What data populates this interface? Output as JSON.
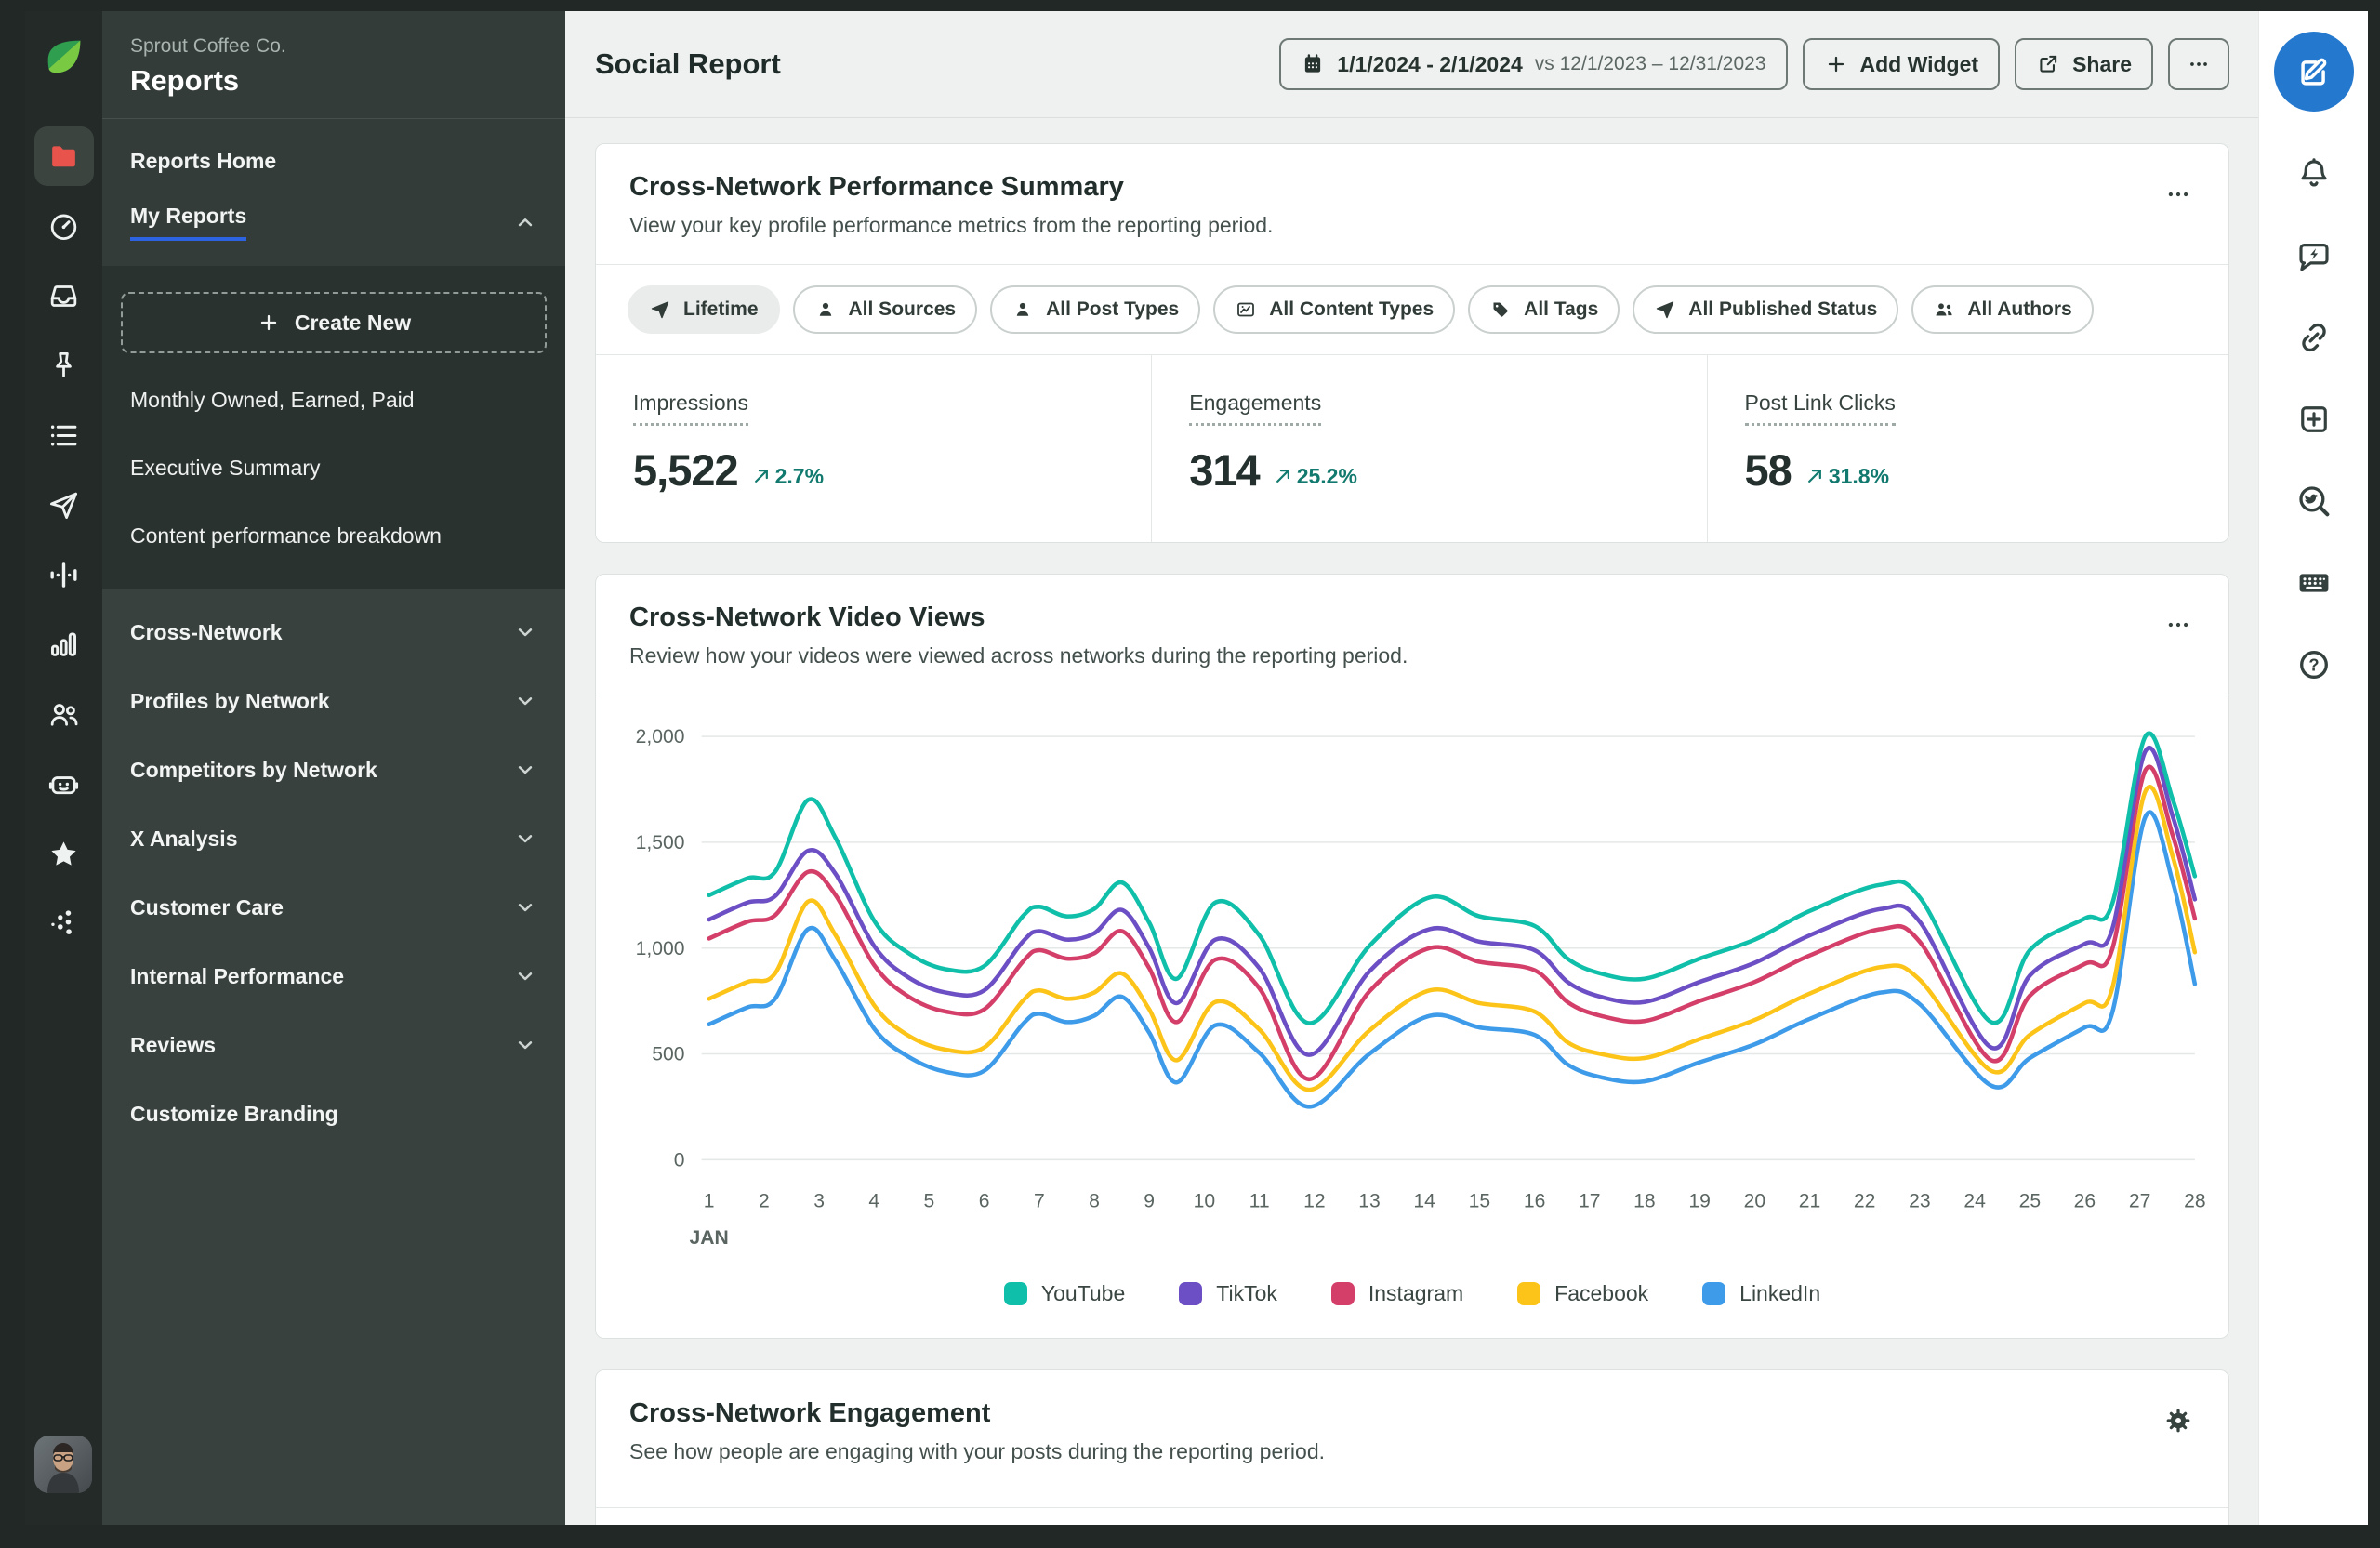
{
  "colors": {
    "accent_blue": "#2478cd",
    "positive_teal": "#11796e",
    "active_folder_red": "#e8544b",
    "my_reports_underline": "#2d63e0"
  },
  "left_rail": {
    "logo": "sprout-leaf-logo",
    "icons": [
      {
        "name": "reports-folder",
        "icon": "folder",
        "active": true
      },
      {
        "name": "dashboard-gauge",
        "icon": "gauge"
      },
      {
        "name": "inbox-tray",
        "icon": "inbox"
      },
      {
        "name": "pinned",
        "icon": "pin"
      },
      {
        "name": "task-list",
        "icon": "list"
      },
      {
        "name": "publishing-send",
        "icon": "send"
      },
      {
        "name": "listening-wave",
        "icon": "wave"
      },
      {
        "name": "analytics-bars",
        "icon": "bars"
      },
      {
        "name": "audience-people",
        "icon": "users"
      },
      {
        "name": "automation-bot",
        "icon": "bot"
      },
      {
        "name": "reviews-star",
        "icon": "star"
      },
      {
        "name": "integrations-dots",
        "icon": "dots"
      }
    ]
  },
  "sidebar": {
    "org": "Sprout Coffee Co.",
    "title": "Reports",
    "items_top": [
      {
        "label": "Reports Home",
        "active": false,
        "chevron": "none"
      },
      {
        "label": "My Reports",
        "active": true,
        "chevron": "up"
      }
    ],
    "create_new_label": "Create New",
    "my_reports_items": [
      {
        "label": "Monthly Owned, Earned, Paid"
      },
      {
        "label": "Executive Summary"
      },
      {
        "label": "Content performance breakdown"
      }
    ],
    "sections": [
      {
        "label": "Cross-Network",
        "chevron": "down"
      },
      {
        "label": "Profiles by Network",
        "chevron": "down"
      },
      {
        "label": "Competitors by Network",
        "chevron": "down"
      },
      {
        "label": "X Analysis",
        "chevron": "down"
      },
      {
        "label": "Customer Care",
        "chevron": "down"
      },
      {
        "label": "Internal Performance",
        "chevron": "down"
      },
      {
        "label": "Reviews",
        "chevron": "down"
      },
      {
        "label": "Customize Branding",
        "chevron": "none"
      }
    ]
  },
  "header": {
    "title": "Social Report",
    "date_range": "1/1/2024 - 2/1/2024",
    "date_compare": "vs 12/1/2023 – 12/31/2023",
    "add_widget_label": "Add Widget",
    "share_label": "Share"
  },
  "cards": {
    "summary": {
      "title": "Cross-Network Performance Summary",
      "description": "View your key profile performance metrics from the reporting period.",
      "filters": [
        {
          "label": "Lifetime",
          "icon": "send",
          "selected": true
        },
        {
          "label": "All Sources",
          "icon": "person",
          "selected": false
        },
        {
          "label": "All Post Types",
          "icon": "person",
          "selected": false
        },
        {
          "label": "All Content Types",
          "icon": "media",
          "selected": false
        },
        {
          "label": "All Tags",
          "icon": "tag",
          "selected": false
        },
        {
          "label": "All Published Status",
          "icon": "send",
          "selected": false
        },
        {
          "label": "All Authors",
          "icon": "people",
          "selected": false
        }
      ],
      "metrics": [
        {
          "label": "Impressions",
          "value": "5,522",
          "change": "2.7%",
          "direction": "up"
        },
        {
          "label": "Engagements",
          "value": "314",
          "change": "25.2%",
          "direction": "up"
        },
        {
          "label": "Post Link Clicks",
          "value": "58",
          "change": "31.8%",
          "direction": "up"
        }
      ]
    },
    "video_views": {
      "title": "Cross-Network Video Views",
      "description": "Review how your videos were viewed across networks during the reporting period."
    },
    "engagement": {
      "title": "Cross-Network Engagement",
      "description": "See how people are engaging with your posts during the reporting period."
    }
  },
  "chart_data": {
    "type": "line",
    "title": "Cross-Network Video Views",
    "x_month_label": "JAN",
    "xlim": [
      1,
      28
    ],
    "ylim": [
      0,
      2000
    ],
    "y_ticks": [
      0,
      500,
      1000,
      1500,
      2000
    ],
    "x_ticks": [
      1,
      2,
      3,
      4,
      5,
      6,
      7,
      8,
      9,
      10,
      11,
      12,
      13,
      14,
      15,
      16,
      17,
      18,
      19,
      20,
      21,
      22,
      23,
      24,
      25,
      26,
      27,
      28
    ],
    "grid": true,
    "legend_position": "bottom",
    "x": [
      1,
      1.7,
      2.2,
      2.8,
      3.3,
      4,
      4.6,
      5.3,
      6,
      6.7,
      7,
      7.5,
      8,
      8.5,
      9,
      9.5,
      10.2,
      11,
      11.9,
      13,
      14.1,
      15,
      16,
      16.6,
      17.2,
      18,
      19,
      20,
      21,
      22.3,
      23,
      24.3,
      25,
      26,
      26.5,
      27.1,
      27.6,
      28
    ],
    "series": [
      {
        "name": "YouTube",
        "color": "#10bfa9",
        "values": [
          1250,
          1330,
          1360,
          1700,
          1520,
          1130,
          980,
          900,
          915,
          1150,
          1195,
          1150,
          1185,
          1310,
          1120,
          855,
          1215,
          1060,
          645,
          1010,
          1240,
          1150,
          1105,
          950,
          880,
          855,
          950,
          1040,
          1175,
          1300,
          1240,
          650,
          990,
          1140,
          1210,
          2000,
          1700,
          1340
        ]
      },
      {
        "name": "TikTok",
        "color": "#6c4fc4",
        "values": [
          1135,
          1215,
          1245,
          1460,
          1350,
          1010,
          865,
          790,
          800,
          1030,
          1080,
          1040,
          1070,
          1180,
          1000,
          740,
          1040,
          905,
          495,
          890,
          1090,
          1030,
          990,
          840,
          770,
          745,
          840,
          930,
          1060,
          1185,
          1125,
          530,
          870,
          1020,
          1090,
          1930,
          1620,
          1230
        ]
      },
      {
        "name": "Instagram",
        "color": "#d43f6a",
        "values": [
          1045,
          1125,
          1155,
          1360,
          1250,
          920,
          775,
          700,
          710,
          935,
          990,
          950,
          975,
          1080,
          905,
          650,
          945,
          810,
          380,
          795,
          1000,
          935,
          895,
          745,
          680,
          655,
          750,
          840,
          965,
          1090,
          1030,
          470,
          775,
          925,
          995,
          1840,
          1530,
          1140
        ]
      },
      {
        "name": "Facebook",
        "color": "#fcc419",
        "values": [
          760,
          840,
          880,
          1220,
          1060,
          730,
          590,
          520,
          530,
          750,
          800,
          760,
          790,
          880,
          710,
          470,
          745,
          615,
          330,
          610,
          800,
          740,
          700,
          555,
          500,
          480,
          570,
          660,
          785,
          910,
          850,
          420,
          590,
          740,
          810,
          1740,
          1430,
          980
        ]
      },
      {
        "name": "LinkedIn",
        "color": "#3d9be9",
        "values": [
          640,
          720,
          760,
          1090,
          940,
          620,
          490,
          415,
          420,
          640,
          690,
          650,
          680,
          770,
          600,
          365,
          635,
          505,
          250,
          500,
          680,
          625,
          590,
          450,
          390,
          370,
          460,
          545,
          665,
          790,
          735,
          350,
          480,
          625,
          695,
          1620,
          1310,
          830
        ]
      }
    ]
  },
  "right_rail": {
    "icons": [
      {
        "name": "compose",
        "icon": "compose",
        "primary": true
      },
      {
        "name": "notifications-bell",
        "icon": "bell",
        "primary": false
      },
      {
        "name": "quick-replies-chat",
        "icon": "chat",
        "primary": false
      },
      {
        "name": "copy-link",
        "icon": "link",
        "primary": false
      },
      {
        "name": "add-widget-box",
        "icon": "plussq",
        "primary": false
      },
      {
        "name": "social-listening-search",
        "icon": "twsearch",
        "primary": false
      },
      {
        "name": "keyboard-shortcuts",
        "icon": "keyboard",
        "primary": false
      },
      {
        "name": "help",
        "icon": "help",
        "primary": false
      }
    ]
  }
}
